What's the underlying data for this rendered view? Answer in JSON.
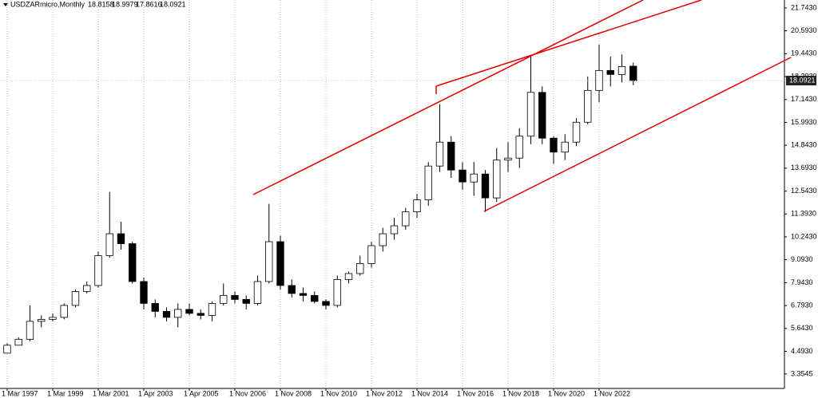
{
  "chart_data": {
    "type": "candlestick",
    "title": "USDZARmicro,Monthly",
    "open": [
      4.4,
      4.8,
      5.1,
      6.0,
      6.1,
      6.2,
      6.8,
      7.5,
      7.8,
      9.3,
      10.4,
      9.9,
      8.0,
      6.9,
      6.5,
      6.2,
      6.6,
      6.4,
      6.3,
      6.9,
      7.3,
      7.1,
      6.9,
      8.0,
      10.0,
      7.8,
      7.4,
      7.3,
      7.0,
      6.8,
      8.1,
      8.4,
      8.9,
      9.8,
      10.4,
      10.8,
      11.5,
      12.1,
      13.8,
      15.0,
      13.6,
      13.0,
      13.4,
      12.2,
      14.1,
      14.2,
      15.3,
      17.5,
      15.2,
      14.5,
      15.0,
      16.0,
      17.6,
      18.6,
      18.4,
      18.8158
    ],
    "high": [
      4.9,
      5.2,
      6.8,
      6.3,
      6.4,
      6.9,
      7.6,
      8.0,
      9.5,
      12.5,
      11.0,
      10.0,
      8.2,
      7.1,
      6.7,
      6.9,
      6.9,
      6.6,
      7.0,
      7.9,
      7.5,
      7.3,
      8.3,
      11.9,
      10.3,
      8.1,
      7.7,
      7.5,
      7.1,
      8.3,
      8.5,
      9.3,
      10.0,
      10.7,
      11.2,
      11.7,
      12.4,
      14.0,
      16.9,
      15.3,
      14.0,
      14.0,
      13.6,
      14.7,
      15.0,
      15.7,
      19.35,
      17.8,
      15.3,
      15.4,
      16.2,
      18.3,
      19.9,
      19.3,
      19.4,
      18.9979
    ],
    "low": [
      4.4,
      4.8,
      5.0,
      5.7,
      6.0,
      6.1,
      6.7,
      7.4,
      7.7,
      9.2,
      9.6,
      7.9,
      6.6,
      6.2,
      6.0,
      5.7,
      6.3,
      6.1,
      6.0,
      6.8,
      6.9,
      6.6,
      6.8,
      7.9,
      7.6,
      7.2,
      7.0,
      6.9,
      6.6,
      6.7,
      7.9,
      8.3,
      8.7,
      9.5,
      10.1,
      10.6,
      11.2,
      11.8,
      13.5,
      13.2,
      12.6,
      12.3,
      11.5,
      12.0,
      13.5,
      13.7,
      14.9,
      14.9,
      13.9,
      14.1,
      14.8,
      15.9,
      17.0,
      17.8,
      18.0,
      17.8616
    ],
    "close": [
      4.8,
      5.1,
      6.0,
      6.1,
      6.2,
      6.8,
      7.5,
      7.8,
      9.3,
      10.4,
      9.9,
      8.0,
      6.9,
      6.5,
      6.2,
      6.6,
      6.4,
      6.3,
      6.9,
      7.3,
      7.1,
      6.9,
      8.0,
      10.0,
      7.8,
      7.4,
      7.3,
      7.0,
      6.8,
      8.1,
      8.4,
      8.9,
      9.8,
      10.4,
      10.8,
      11.5,
      12.1,
      13.8,
      15.0,
      13.6,
      13.0,
      13.4,
      12.2,
      14.1,
      14.2,
      15.3,
      17.5,
      15.2,
      14.5,
      15.0,
      16.0,
      17.6,
      18.6,
      18.4,
      18.8,
      18.0921
    ],
    "xlim": [
      -0.63,
      68.28
    ],
    "xticks": [
      {
        "value": 0,
        "label": "1 Mar 1997"
      },
      {
        "value": 4,
        "label": "1 Mar 1999"
      },
      {
        "value": 8,
        "label": "1 Mar 2001"
      },
      {
        "value": 12,
        "label": "1 Apr 2003"
      },
      {
        "value": 16,
        "label": "1 Apr 2005"
      },
      {
        "value": 20,
        "label": "1 Nov 2006"
      },
      {
        "value": 24,
        "label": "1 Nov 2008"
      },
      {
        "value": 28,
        "label": "1 Nov 2010"
      },
      {
        "value": 32,
        "label": "1 Nov 2012"
      },
      {
        "value": 36,
        "label": "1 Nov 2014"
      },
      {
        "value": 40,
        "label": "1 Nov 2016"
      },
      {
        "value": 44,
        "label": "1 Nov 2018"
      },
      {
        "value": 48,
        "label": "1 Nov 2020"
      },
      {
        "value": 52,
        "label": "1 Nov 2022"
      }
    ],
    "ylim": [
      2.63,
      22.14
    ],
    "yticks": [
      3.3545,
      {
        "value": 4.493,
        "label": "4.4930"
      },
      {
        "value": 5.643,
        "label": "5.6430"
      },
      {
        "value": 6.793,
        "label": "6.7930"
      },
      {
        "value": 7.943,
        "label": "7.9430"
      },
      {
        "value": 9.093,
        "label": "9.0930"
      },
      {
        "value": 10.243,
        "label": "10.2430"
      },
      {
        "value": 11.393,
        "label": "11.3930"
      },
      {
        "value": 12.543,
        "label": "12.5430"
      },
      {
        "value": 13.693,
        "label": "13.6930"
      },
      {
        "value": 14.843,
        "label": "14.8430"
      },
      {
        "value": 15.993,
        "label": "15.9930"
      },
      {
        "value": 17.143,
        "label": "17.1430"
      },
      {
        "value": 18.293,
        "label": "18.2930"
      },
      {
        "value": 19.443,
        "label": "19.4430"
      },
      {
        "value": 20.593,
        "label": "20.5930"
      },
      {
        "value": 21.743,
        "label": "21.7430"
      }
    ],
    "grid": "x",
    "up_color": "#ffffff",
    "down_color": "#000000"
  }
}
